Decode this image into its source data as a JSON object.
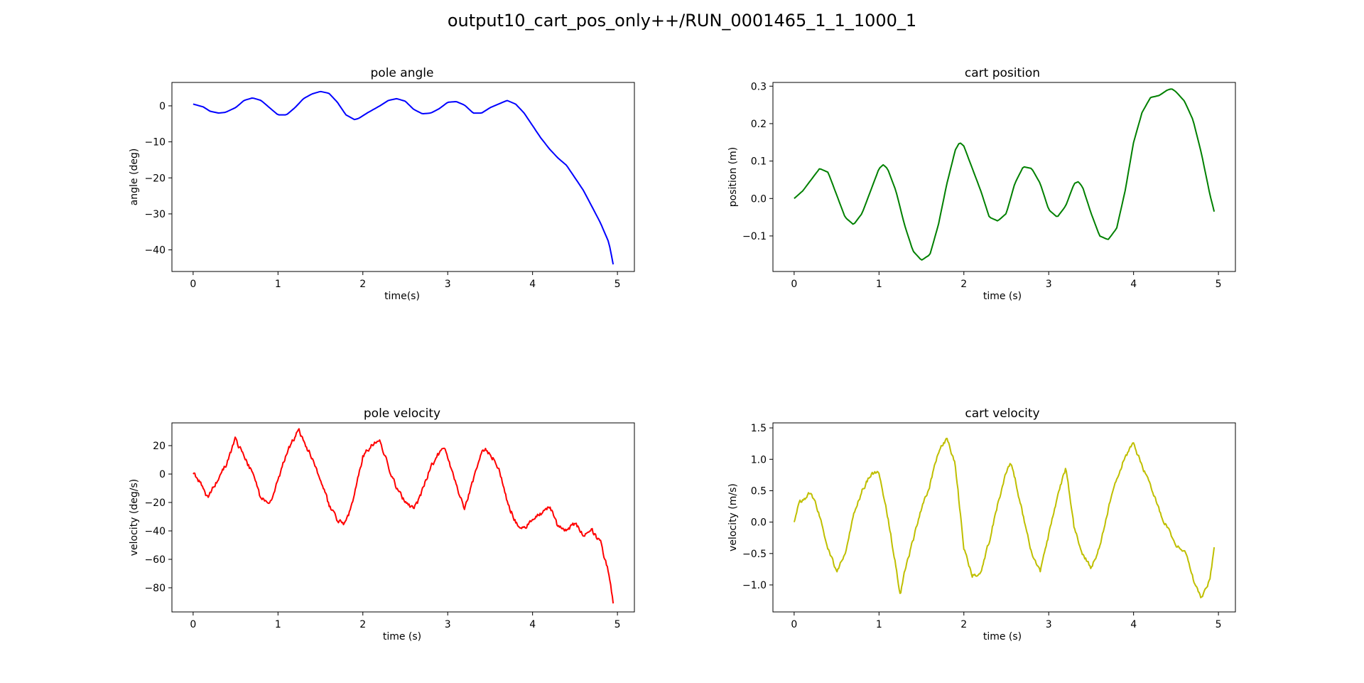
{
  "figure": {
    "title": "output10_cart_pos_only++/RUN_0001465_1_1_1000_1"
  },
  "chart_data": [
    {
      "type": "line",
      "title": "pole angle",
      "xlabel": "time(s)",
      "ylabel": "angle (deg)",
      "color": "#0000ff",
      "xlim": [
        -0.25,
        5.2
      ],
      "ylim": [
        -46,
        6.5
      ],
      "xticks": [
        0,
        1,
        2,
        3,
        4,
        5
      ],
      "yticks": [
        0,
        -10,
        -20,
        -30,
        -40
      ],
      "ytick_labels": [
        "0",
        "−10",
        "−20",
        "−30",
        "−40"
      ],
      "xtick_labels": [
        "0",
        "1",
        "2",
        "3",
        "4",
        "5"
      ],
      "noise": 0,
      "series": [
        {
          "x": [
            0,
            0.12,
            0.2,
            0.3,
            0.38,
            0.5,
            0.6,
            0.7,
            0.8,
            0.9,
            1.0,
            1.1,
            1.2,
            1.3,
            1.4,
            1.5,
            1.6,
            1.7,
            1.8,
            1.9,
            1.95,
            2.05,
            2.2,
            2.3,
            2.4,
            2.5,
            2.6,
            2.7,
            2.8,
            2.9,
            3.0,
            3.1,
            3.2,
            3.3,
            3.4,
            3.5,
            3.6,
            3.7,
            3.8,
            3.9,
            4.0,
            4.1,
            4.2,
            4.3,
            4.4,
            4.5,
            4.6,
            4.7,
            4.8,
            4.9,
            4.95
          ],
          "y": [
            0.5,
            -0.3,
            -1.5,
            -2,
            -1.8,
            -0.5,
            1.5,
            2.2,
            1.5,
            -0.5,
            -2.5,
            -2.5,
            -0.5,
            2,
            3.3,
            4,
            3.5,
            1,
            -2.5,
            -3.8,
            -3.5,
            -2,
            0,
            1.5,
            2,
            1.3,
            -1,
            -2.2,
            -2,
            -0.8,
            1,
            1.2,
            0.2,
            -2,
            -2,
            -0.5,
            0.5,
            1.5,
            0.5,
            -2,
            -5.5,
            -9,
            -12,
            -14.5,
            -16.5,
            -20,
            -23.5,
            -28,
            -32.5,
            -38,
            -44
          ]
        }
      ]
    },
    {
      "type": "line",
      "title": "cart position",
      "xlabel": "time (s)",
      "ylabel": "position (m)",
      "color": "#008000",
      "xlim": [
        -0.25,
        5.2
      ],
      "ylim": [
        -0.195,
        0.31
      ],
      "xticks": [
        0,
        1,
        2,
        3,
        4,
        5
      ],
      "yticks": [
        0.3,
        0.2,
        0.1,
        0,
        -0.1
      ],
      "ytick_labels": [
        "0.3",
        "0.2",
        "0.1",
        "0.0",
        "−0.1"
      ],
      "xtick_labels": [
        "0",
        "1",
        "2",
        "3",
        "4",
        "5"
      ],
      "noise": 0,
      "series": [
        {
          "x": [
            0,
            0.1,
            0.2,
            0.3,
            0.4,
            0.5,
            0.6,
            0.7,
            0.8,
            0.9,
            1.0,
            1.05,
            1.1,
            1.2,
            1.3,
            1.4,
            1.5,
            1.6,
            1.7,
            1.8,
            1.9,
            1.95,
            2.0,
            2.1,
            2.2,
            2.3,
            2.4,
            2.5,
            2.6,
            2.7,
            2.8,
            2.9,
            3.0,
            3.1,
            3.2,
            3.3,
            3.35,
            3.4,
            3.5,
            3.6,
            3.7,
            3.8,
            3.9,
            4.0,
            4.1,
            4.2,
            4.3,
            4.4,
            4.45,
            4.5,
            4.6,
            4.7,
            4.8,
            4.9,
            4.95
          ],
          "y": [
            0,
            0.02,
            0.05,
            0.08,
            0.07,
            0.01,
            -0.05,
            -0.07,
            -0.04,
            0.02,
            0.08,
            0.09,
            0.08,
            0.02,
            -0.07,
            -0.14,
            -0.165,
            -0.15,
            -0.07,
            0.04,
            0.13,
            0.15,
            0.14,
            0.08,
            0.02,
            -0.05,
            -0.06,
            -0.04,
            0.04,
            0.085,
            0.08,
            0.04,
            -0.03,
            -0.05,
            -0.02,
            0.04,
            0.045,
            0.03,
            -0.04,
            -0.1,
            -0.11,
            -0.08,
            0.02,
            0.15,
            0.23,
            0.27,
            0.275,
            0.29,
            0.293,
            0.285,
            0.26,
            0.21,
            0.12,
            0.01,
            -0.035
          ]
        }
      ]
    },
    {
      "type": "line",
      "title": "pole velocity",
      "xlabel": "time (s)",
      "ylabel": "velocity (deg/s)",
      "color": "#ff0000",
      "xlim": [
        -0.25,
        5.2
      ],
      "ylim": [
        -97,
        36
      ],
      "xticks": [
        0,
        1,
        2,
        3,
        4,
        5
      ],
      "yticks": [
        20,
        0,
        -20,
        -40,
        -60,
        -80
      ],
      "ytick_labels": [
        "20",
        "0",
        "−20",
        "−40",
        "−60",
        "−80"
      ],
      "xtick_labels": [
        "0",
        "1",
        "2",
        "3",
        "4",
        "5"
      ],
      "noise": 3,
      "series": [
        {
          "x": [
            0,
            0.1,
            0.17,
            0.3,
            0.4,
            0.5,
            0.6,
            0.7,
            0.8,
            0.9,
            1.0,
            1.1,
            1.25,
            1.3,
            1.4,
            1.5,
            1.6,
            1.7,
            1.8,
            1.9,
            2.0,
            2.1,
            2.2,
            2.3,
            2.4,
            2.5,
            2.6,
            2.65,
            2.8,
            2.95,
            3.0,
            3.1,
            3.2,
            3.3,
            3.4,
            3.45,
            3.55,
            3.6,
            3.7,
            3.8,
            3.9,
            4.0,
            4.1,
            4.2,
            4.3,
            4.4,
            4.5,
            4.6,
            4.7,
            4.8,
            4.85,
            4.9,
            4.95
          ],
          "y": [
            0,
            -7,
            -17,
            -3,
            8,
            25,
            12,
            0,
            -18,
            -20,
            -5,
            15,
            32,
            22,
            12,
            -3,
            -22,
            -33,
            -35,
            -15,
            12,
            20,
            25,
            5,
            -10,
            -20,
            -25,
            -20,
            5,
            20,
            10,
            -7,
            -25,
            -5,
            15,
            18,
            10,
            5,
            -20,
            -33,
            -38,
            -32,
            -28,
            -22,
            -38,
            -40,
            -35,
            -42,
            -40,
            -48,
            -60,
            -70,
            -91
          ]
        }
      ]
    },
    {
      "type": "line",
      "title": "cart velocity",
      "xlabel": "time (s)",
      "ylabel": "velocity (m/s)",
      "color": "#bfbf00",
      "xlim": [
        -0.25,
        5.2
      ],
      "ylim": [
        -1.43,
        1.58
      ],
      "xticks": [
        0,
        1,
        2,
        3,
        4,
        5
      ],
      "yticks": [
        1.5,
        1.0,
        0.5,
        0.0,
        -0.5,
        -1.0
      ],
      "ytick_labels": [
        "1.5",
        "1.0",
        "0.5",
        "0.0",
        "−0.5",
        "−1.0"
      ],
      "xtick_labels": [
        "0",
        "1",
        "2",
        "3",
        "4",
        "5"
      ],
      "noise": 0.06,
      "series": [
        {
          "x": [
            0,
            0.05,
            0.15,
            0.2,
            0.3,
            0.4,
            0.5,
            0.6,
            0.7,
            0.8,
            0.9,
            1.0,
            1.1,
            1.2,
            1.25,
            1.3,
            1.4,
            1.5,
            1.6,
            1.7,
            1.8,
            1.9,
            2.0,
            2.1,
            2.2,
            2.3,
            2.4,
            2.5,
            2.55,
            2.6,
            2.7,
            2.8,
            2.9,
            3.0,
            3.1,
            3.2,
            3.25,
            3.3,
            3.4,
            3.5,
            3.6,
            3.7,
            3.8,
            3.9,
            4.0,
            4.1,
            4.2,
            4.3,
            4.4,
            4.5,
            4.6,
            4.7,
            4.8,
            4.9,
            4.95
          ],
          "y": [
            0,
            0.3,
            0.4,
            0.5,
            0.1,
            -0.4,
            -0.8,
            -0.5,
            0.1,
            0.5,
            0.75,
            0.8,
            0.1,
            -0.7,
            -1.15,
            -0.8,
            -0.3,
            0.2,
            0.6,
            1.1,
            1.35,
            0.9,
            -0.4,
            -0.85,
            -0.8,
            -0.3,
            0.3,
            0.8,
            0.95,
            0.7,
            0.1,
            -0.5,
            -0.8,
            -0.2,
            0.4,
            0.85,
            0.4,
            -0.1,
            -0.5,
            -0.75,
            -0.4,
            0.2,
            0.7,
            1.05,
            1.25,
            0.9,
            0.55,
            0.2,
            -0.1,
            -0.35,
            -0.45,
            -0.9,
            -1.2,
            -0.9,
            -0.4
          ]
        }
      ]
    }
  ]
}
